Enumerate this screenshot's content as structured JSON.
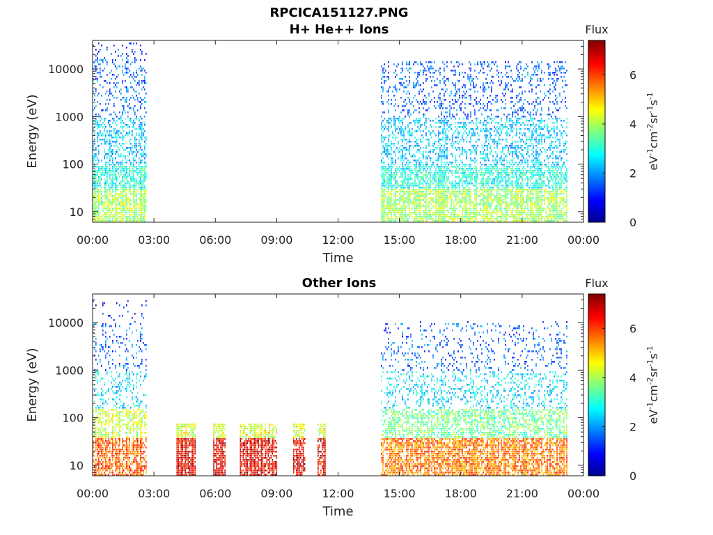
{
  "chart_data": [
    {
      "type": "heatmap",
      "title": "RPCICA151127.PNG",
      "subtitle": "H+ He++ Ions",
      "xlabel": "Time",
      "ylabel": "Energy (eV)",
      "x_ticks": [
        "00:00",
        "03:00",
        "06:00",
        "09:00",
        "12:00",
        "15:00",
        "18:00",
        "21:00",
        "00:00"
      ],
      "y_ticks": [
        "10",
        "100",
        "1000",
        "10000"
      ],
      "y_scale": "log",
      "ylim": [
        6,
        40000
      ],
      "xlim_hours": [
        0,
        24
      ],
      "colorbar": {
        "label": "Flux",
        "unit": "eV-1cm-2sr-1s-1",
        "ticks": [
          "0",
          "2",
          "4",
          "6"
        ],
        "range": [
          0,
          7.4
        ]
      },
      "data_blocks": [
        {
          "start_hour": 0.0,
          "end_hour": 2.65,
          "emin": 6,
          "emax": 40000,
          "profile": "light"
        },
        {
          "start_hour": 14.1,
          "end_hour": 23.2,
          "emin": 6,
          "emax": 15000,
          "profile": "light"
        }
      ]
    },
    {
      "type": "heatmap",
      "title": "Other Ions",
      "xlabel": "Time",
      "ylabel": "Energy (eV)",
      "x_ticks": [
        "00:00",
        "03:00",
        "06:00",
        "09:00",
        "12:00",
        "15:00",
        "18:00",
        "21:00",
        "00:00"
      ],
      "y_ticks": [
        "10",
        "100",
        "1000",
        "10000"
      ],
      "y_scale": "log",
      "ylim": [
        6,
        40000
      ],
      "xlim_hours": [
        0,
        24
      ],
      "colorbar": {
        "label": "Flux",
        "unit": "eV-1cm-2sr-1s-1",
        "ticks": [
          "0",
          "2",
          "4",
          "6"
        ],
        "range": [
          0,
          7.4
        ]
      },
      "data_blocks": [
        {
          "start_hour": 0.0,
          "end_hour": 2.65,
          "emin": 6,
          "emax": 30000,
          "profile": "heavy"
        },
        {
          "start_hour": 4.1,
          "end_hour": 5.0,
          "emin": 6,
          "emax": 80,
          "profile": "burst"
        },
        {
          "start_hour": 5.9,
          "end_hour": 6.5,
          "emin": 6,
          "emax": 80,
          "profile": "burst"
        },
        {
          "start_hour": 7.2,
          "end_hour": 9.0,
          "emin": 6,
          "emax": 80,
          "profile": "burst"
        },
        {
          "start_hour": 9.8,
          "end_hour": 10.4,
          "emin": 6,
          "emax": 80,
          "profile": "burst"
        },
        {
          "start_hour": 11.0,
          "end_hour": 11.4,
          "emin": 6,
          "emax": 80,
          "profile": "burst"
        },
        {
          "start_hour": 14.1,
          "end_hour": 23.2,
          "emin": 6,
          "emax": 11000,
          "profile": "heavy"
        }
      ]
    }
  ]
}
